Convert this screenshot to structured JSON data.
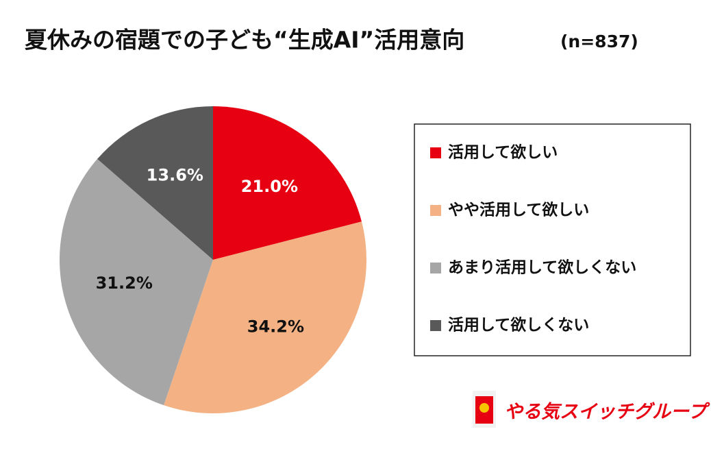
{
  "chart_data": {
    "type": "pie",
    "title": "夏休みの宿題での子ども“生成AI”活用意向",
    "subtitle": "(n=837)",
    "categories": [
      "活用して欲しい",
      "やや活用して欲しい",
      "あまり活用して欲しくない",
      "活用して欲しくない"
    ],
    "values": [
      21.0,
      34.2,
      31.2,
      13.6
    ],
    "value_labels": [
      "21.0%",
      "34.2%",
      "31.2%",
      "13.6%"
    ],
    "colors": [
      "#e60012",
      "#f4b183",
      "#a6a6a6",
      "#595959"
    ],
    "label_colors": [
      "#ffffff",
      "#111111",
      "#111111",
      "#ffffff"
    ],
    "legend": "right",
    "logo_text": "やる気スイッチグループ"
  }
}
